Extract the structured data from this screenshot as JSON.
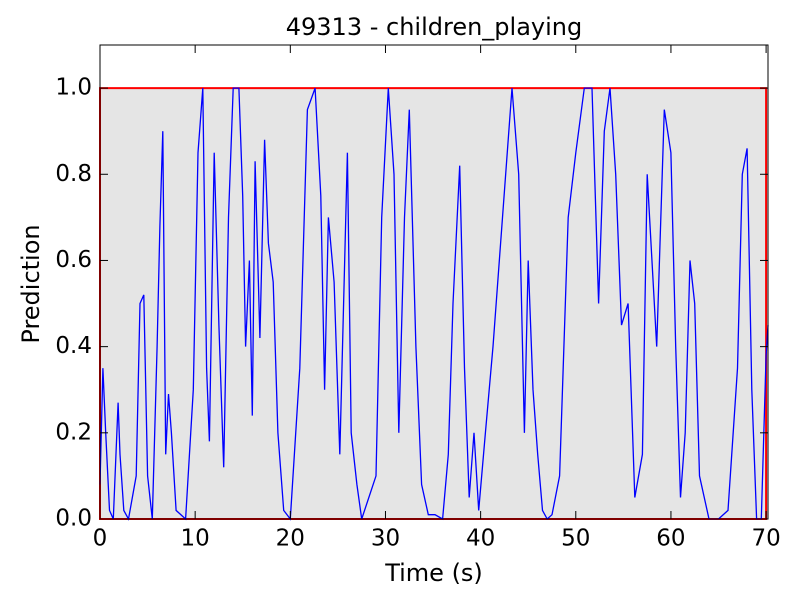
{
  "chart_data": {
    "type": "line",
    "title": "49313 - children_playing",
    "x_label": "Time (s)",
    "y_label": "Prediction",
    "xlim": [
      0,
      70.2
    ],
    "ylim": [
      0,
      1.1
    ],
    "xticks": [
      0,
      10,
      20,
      30,
      40,
      50,
      60,
      70
    ],
    "yticks": [
      {
        "value": 0,
        "label": "0.0"
      },
      0.2,
      0.4,
      0.6,
      0.8,
      {
        "value": 1,
        "label": "1.0"
      }
    ],
    "truth": {
      "x": [
        0,
        70
      ],
      "values": [
        1,
        1
      ],
      "color": "#ff0000",
      "fill": "#e5e5e5"
    },
    "series": [
      {
        "color": "#0000ff",
        "x": [
          0,
          0.3,
          0.6,
          1,
          1.4,
          1.9,
          2.1,
          2.5,
          3,
          3.8,
          4.2,
          4.6,
          5,
          5.5,
          6,
          6.3,
          6.6,
          6.9,
          7.2,
          7.5,
          8,
          9,
          9.8,
          10.3,
          10.8,
          11.2,
          11.5,
          12,
          12.5,
          13,
          13.5,
          14,
          14.6,
          15,
          15.3,
          15.7,
          16,
          16.3,
          16.8,
          17.3,
          17.7,
          18.2,
          18.7,
          19.3,
          20,
          21,
          21.8,
          22.6,
          23.2,
          23.6,
          24,
          24.6,
          25.2,
          26,
          26.4,
          27,
          27.5,
          29,
          29.6,
          30.3,
          30.9,
          31.4,
          32,
          32.5,
          33.2,
          33.8,
          34.5,
          35.2,
          36,
          36.6,
          37.1,
          37.8,
          38.3,
          38.8,
          39.3,
          39.8,
          40.5,
          41.3,
          42.3,
          43.3,
          44,
          44.6,
          45,
          45.5,
          46,
          46.5,
          47,
          47.5,
          48.3,
          49.2,
          50,
          50.9,
          51.7,
          52.4,
          53,
          53.6,
          54.2,
          54.8,
          55.5,
          56.2,
          57,
          57.5,
          58.5,
          59.3,
          60,
          60.5,
          61,
          61.5,
          62,
          62.5,
          63,
          64,
          65,
          66,
          67,
          67.5,
          68,
          68.5,
          69,
          69.5,
          70,
          70.2
        ],
        "values": [
          0.08,
          0.35,
          0.2,
          0.02,
          0,
          0.27,
          0.15,
          0.02,
          0,
          0.1,
          0.5,
          0.52,
          0.1,
          0,
          0.4,
          0.68,
          0.9,
          0.15,
          0.29,
          0.2,
          0.02,
          0,
          0.3,
          0.85,
          1.0,
          0.35,
          0.18,
          0.85,
          0.45,
          0.12,
          0.7,
          1.0,
          1.0,
          0.75,
          0.4,
          0.6,
          0.24,
          0.83,
          0.42,
          0.88,
          0.64,
          0.55,
          0.2,
          0.02,
          0,
          0.35,
          0.95,
          1.0,
          0.75,
          0.3,
          0.7,
          0.55,
          0.15,
          0.85,
          0.2,
          0.08,
          0,
          0.1,
          0.7,
          1.0,
          0.8,
          0.2,
          0.7,
          0.95,
          0.4,
          0.08,
          0.01,
          0.01,
          0,
          0.15,
          0.5,
          0.82,
          0.35,
          0.05,
          0.2,
          0.02,
          0.2,
          0.4,
          0.7,
          1.0,
          0.8,
          0.2,
          0.6,
          0.3,
          0.15,
          0.02,
          0,
          0.01,
          0.1,
          0.7,
          0.85,
          1.0,
          1.0,
          0.5,
          0.9,
          1.0,
          0.8,
          0.45,
          0.5,
          0.05,
          0.15,
          0.8,
          0.4,
          0.95,
          0.85,
          0.4,
          0.05,
          0.2,
          0.6,
          0.5,
          0.1,
          0,
          0,
          0.02,
          0.35,
          0.8,
          0.86,
          0.3,
          0,
          0,
          0.38,
          0.45
        ]
      }
    ]
  }
}
